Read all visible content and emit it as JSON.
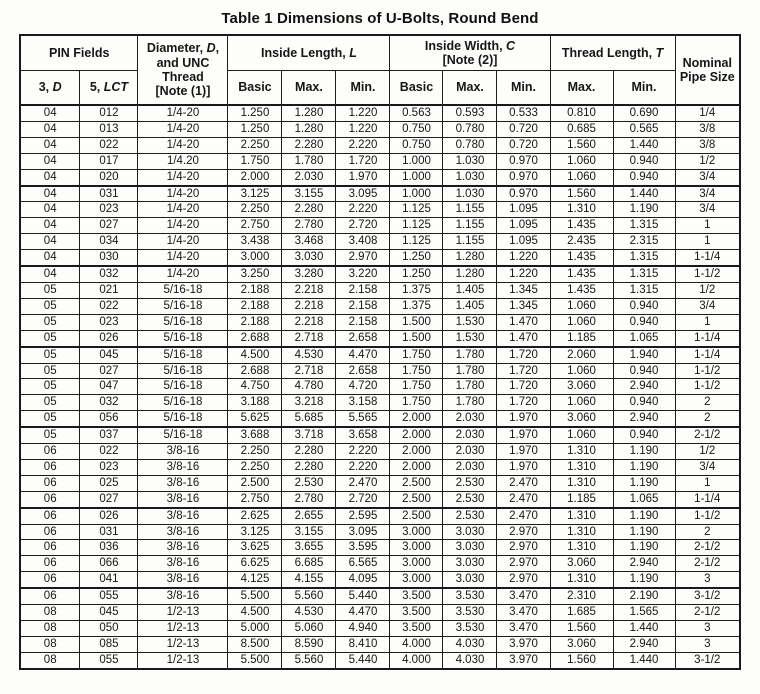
{
  "page": {
    "title": "Table 1 Dimensions of U-Bolts, Round Bend"
  },
  "table": {
    "header": {
      "pin_fields": "PIN Fields",
      "pin_d": {
        "pre": "3, ",
        "it": "D"
      },
      "pin_lct": {
        "pre": "5, ",
        "it": "LCT"
      },
      "diameter": {
        "pre": "Diameter, ",
        "it": "D",
        "post": ", and UNC Thread",
        "note": "[Note (1)]"
      },
      "inside_length": {
        "pre": "Inside Length, ",
        "it": "L"
      },
      "inside_width": {
        "pre": "Inside Width, ",
        "it": "C",
        "note": "[Note (2)]"
      },
      "thread_length": {
        "pre": "Thread Length, ",
        "it": "T"
      },
      "basic": "Basic",
      "max": "Max.",
      "min": "Min.",
      "nominal_pipe": "Nominal Pipe Size"
    },
    "column_keys": [
      "pin_3d",
      "pin_5lct",
      "diameter_unc_thread",
      "inside_length_basic",
      "inside_length_max",
      "inside_length_min",
      "inside_width_basic",
      "inside_width_max",
      "inside_width_min",
      "thread_length_max",
      "thread_length_min",
      "nominal_pipe_size"
    ],
    "groups": [
      [
        [
          "04",
          "012",
          "1/4-20",
          "1.250",
          "1.280",
          "1.220",
          "0.563",
          "0.593",
          "0.533",
          "0.810",
          "0.690",
          "1/4"
        ],
        [
          "04",
          "013",
          "1/4-20",
          "1.250",
          "1.280",
          "1.220",
          "0.750",
          "0.780",
          "0.720",
          "0.685",
          "0.565",
          "3/8"
        ],
        [
          "04",
          "022",
          "1/4-20",
          "2.250",
          "2.280",
          "2.220",
          "0.750",
          "0.780",
          "0.720",
          "1.560",
          "1.440",
          "3/8"
        ],
        [
          "04",
          "017",
          "1/4.20",
          "1.750",
          "1.780",
          "1.720",
          "1.000",
          "1.030",
          "0.970",
          "1.060",
          "0.940",
          "1/2"
        ],
        [
          "04",
          "020",
          "1/4-20",
          "2.000",
          "2.030",
          "1.970",
          "1.000",
          "1.030",
          "0.970",
          "1.060",
          "0.940",
          "3/4"
        ]
      ],
      [
        [
          "04",
          "031",
          "1/4-20",
          "3.125",
          "3.155",
          "3.095",
          "1.000",
          "1.030",
          "0.970",
          "1.560",
          "1.440",
          "3/4"
        ],
        [
          "04",
          "023",
          "1/4-20",
          "2.250",
          "2.280",
          "2.220",
          "1.125",
          "1.155",
          "1.095",
          "1.310",
          "1.190",
          "3/4"
        ],
        [
          "04",
          "027",
          "1/4-20",
          "2.750",
          "2.780",
          "2.720",
          "1.125",
          "1.155",
          "1.095",
          "1.435",
          "1.315",
          "1"
        ],
        [
          "04",
          "034",
          "1/4-20",
          "3.438",
          "3.468",
          "3.408",
          "1.125",
          "1.155",
          "1.095",
          "2.435",
          "2.315",
          "1"
        ],
        [
          "04",
          "030",
          "1/4-20",
          "3.000",
          "3.030",
          "2.970",
          "1.250",
          "1.280",
          "1.220",
          "1.435",
          "1.315",
          "1-1/4"
        ]
      ],
      [
        [
          "04",
          "032",
          "1/4-20",
          "3.250",
          "3.280",
          "3.220",
          "1.250",
          "1.280",
          "1.220",
          "1.435",
          "1.315",
          "1-1/2"
        ],
        [
          "05",
          "021",
          "5/16-18",
          "2.188",
          "2.218",
          "2.158",
          "1.375",
          "1.405",
          "1.345",
          "1.435",
          "1.315",
          "1/2"
        ],
        [
          "05",
          "022",
          "5/16-18",
          "2.188",
          "2.218",
          "2.158",
          "1.375",
          "1.405",
          "1.345",
          "1.060",
          "0.940",
          "3/4"
        ],
        [
          "05",
          "023",
          "5/16-18",
          "2.188",
          "2.218",
          "2.158",
          "1.500",
          "1.530",
          "1.470",
          "1.060",
          "0.940",
          "1"
        ],
        [
          "05",
          "026",
          "5/16-18",
          "2.688",
          "2.718",
          "2.658",
          "1.500",
          "1.530",
          "1.470",
          "1.185",
          "1.065",
          "1-1/4"
        ]
      ],
      [
        [
          "05",
          "045",
          "5/16-18",
          "4.500",
          "4.530",
          "4.470",
          "1.750",
          "1.780",
          "1.720",
          "2.060",
          "1.940",
          "1-1/4"
        ],
        [
          "05",
          "027",
          "5/16-18",
          "2.688",
          "2.718",
          "2.658",
          "1.750",
          "1.780",
          "1.720",
          "1.060",
          "0.940",
          "1-1/2"
        ],
        [
          "05",
          "047",
          "5/16-18",
          "4.750",
          "4.780",
          "4.720",
          "1.750",
          "1.780",
          "1.720",
          "3.060",
          "2.940",
          "1-1/2"
        ],
        [
          "05",
          "032",
          "5/16-18",
          "3.188",
          "3.218",
          "3.158",
          "1.750",
          "1.780",
          "1.720",
          "1.060",
          "0.940",
          "2"
        ],
        [
          "05",
          "056",
          "5/16-18",
          "5.625",
          "5.685",
          "5.565",
          "2.000",
          "2.030",
          "1.970",
          "3.060",
          "2.940",
          "2"
        ]
      ],
      [
        [
          "05",
          "037",
          "5/16-18",
          "3.688",
          "3.718",
          "3.658",
          "2.000",
          "2.030",
          "1.970",
          "1.060",
          "0.940",
          "2-1/2"
        ],
        [
          "06",
          "022",
          "3/8-16",
          "2.250",
          "2.280",
          "2.220",
          "2.000",
          "2.030",
          "1.970",
          "1.310",
          "1.190",
          "1/2"
        ],
        [
          "06",
          "023",
          "3/8-16",
          "2.250",
          "2.280",
          "2.220",
          "2.000",
          "2.030",
          "1.970",
          "1.310",
          "1.190",
          "3/4"
        ],
        [
          "06",
          "025",
          "3/8-16",
          "2.500",
          "2.530",
          "2.470",
          "2.500",
          "2.530",
          "2.470",
          "1.310",
          "1.190",
          "1"
        ],
        [
          "06",
          "027",
          "3/8-16",
          "2.750",
          "2.780",
          "2.720",
          "2.500",
          "2.530",
          "2.470",
          "1.185",
          "1.065",
          "1-1/4"
        ]
      ],
      [
        [
          "06",
          "026",
          "3/8-16",
          "2.625",
          "2.655",
          "2.595",
          "2.500",
          "2.530",
          "2.470",
          "1.310",
          "1.190",
          "1-1/2"
        ],
        [
          "06",
          "031",
          "3/8-16",
          "3.125",
          "3.155",
          "3.095",
          "3.000",
          "3.030",
          "2.970",
          "1.310",
          "1.190",
          "2"
        ],
        [
          "06",
          "036",
          "3/8-16",
          "3.625",
          "3.655",
          "3.595",
          "3.000",
          "3.030",
          "2.970",
          "1.310",
          "1.190",
          "2-1/2"
        ],
        [
          "06",
          "066",
          "3/8-16",
          "6.625",
          "6.685",
          "6.565",
          "3.000",
          "3.030",
          "2.970",
          "3.060",
          "2.940",
          "2-1/2"
        ],
        [
          "06",
          "041",
          "3/8-16",
          "4.125",
          "4.155",
          "4.095",
          "3.000",
          "3.030",
          "2.970",
          "1.310",
          "1.190",
          "3"
        ]
      ],
      [
        [
          "06",
          "055",
          "3/8-16",
          "5.500",
          "5.560",
          "5.440",
          "3.500",
          "3.530",
          "3.470",
          "2.310",
          "2.190",
          "3-1/2"
        ],
        [
          "08",
          "045",
          "1/2-13",
          "4.500",
          "4.530",
          "4.470",
          "3.500",
          "3.530",
          "3.470",
          "1.685",
          "1.565",
          "2-1/2"
        ],
        [
          "08",
          "050",
          "1/2-13",
          "5.000",
          "5.060",
          "4.940",
          "3.500",
          "3.530",
          "3.470",
          "1.560",
          "1.440",
          "3"
        ],
        [
          "08",
          "085",
          "1/2-13",
          "8.500",
          "8.590",
          "8.410",
          "4.000",
          "4.030",
          "3.970",
          "3.060",
          "2.940",
          "3"
        ],
        [
          "08",
          "055",
          "1/2-13",
          "5.500",
          "5.560",
          "5.440",
          "4.000",
          "4.030",
          "3.970",
          "1.560",
          "1.440",
          "3-1/2"
        ]
      ]
    ]
  }
}
